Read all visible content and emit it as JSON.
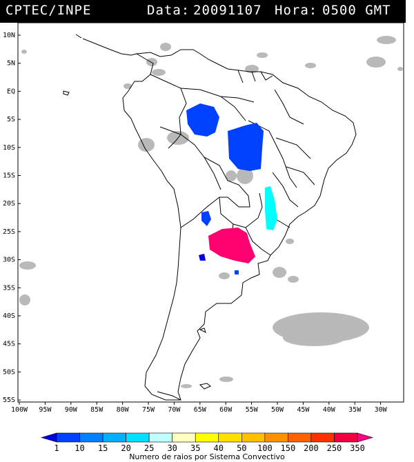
{
  "header": {
    "source": "CPTEC/INPE",
    "date_label": "Data:",
    "date_value": "20091107",
    "hour_label": "Hora:",
    "hour_value": "0500 GMT"
  },
  "axes": {
    "lat_labels": [
      "10N",
      "5N",
      "EQ",
      "5S",
      "10S",
      "15S",
      "20S",
      "25S",
      "30S",
      "35S",
      "40S",
      "45S",
      "50S",
      "55S"
    ],
    "lon_labels": [
      "100W",
      "95W",
      "90W",
      "85W",
      "80W",
      "75W",
      "70W",
      "65W",
      "60W",
      "55W",
      "50W",
      "45W",
      "40W",
      "35W",
      "30W"
    ]
  },
  "legend": {
    "labels": [
      "1",
      "10",
      "15",
      "20",
      "25",
      "30",
      "35",
      "40",
      "50",
      "100",
      "150",
      "200",
      "250",
      "350"
    ],
    "colors": [
      "#0000e0",
      "#0040ff",
      "#0080ff",
      "#00b0ff",
      "#00e0ff",
      "#c0ffff",
      "#ffffc0",
      "#ffff00",
      "#ffe000",
      "#ffc000",
      "#ff9000",
      "#ff6000",
      "#ff3000",
      "#f00040",
      "#ff0080"
    ],
    "title": "Numero de raios por Sistema Convectivo"
  },
  "colors": {
    "land_outline": "#000000",
    "cloud_gray": "#b4b4b4",
    "storm_blue": "#0040ff",
    "storm_cyan": "#00ffff",
    "storm_magenta": "#ff0070"
  }
}
